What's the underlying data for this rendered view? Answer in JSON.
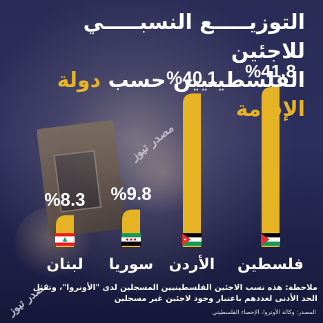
{
  "title": {
    "line1": "التوزيـــــع النسبـــــي للاجئين",
    "line2_white": "الفلسطينيين حسب ",
    "line2_accent": "دولة الإقامة"
  },
  "watermark": "مصدر تيوز",
  "chart_data": {
    "type": "bar",
    "categories": [
      "فلسطين",
      "الأردن",
      "سوريا",
      "لبنان"
    ],
    "values": [
      41.8,
      40.1,
      9.8,
      8.3
    ],
    "value_labels": [
      "%41.8",
      "%40.1",
      "%9.8",
      "%8.3"
    ],
    "ylim": [
      0,
      41.8
    ],
    "flags": [
      "palestine-flag-icon",
      "jordan-flag-icon",
      "syria-flag-icon",
      "lebanon-flag-icon"
    ],
    "bar_color": "#e6b325",
    "grid": false
  },
  "note": "ملاحظة: هذه نسب الاجئين الفلسطينيين المسجلين لدى \"الأونروا\"، وتمثل الحد الأدنى لعددهم باعتبار وجود لاجئين غير مسجلين",
  "source": "المصدر: وكالة الأونروا، الإحصاء الفلسطيني",
  "colors": {
    "background": "#2a2c56",
    "accent": "#e6b325",
    "text": "#ffffff"
  }
}
